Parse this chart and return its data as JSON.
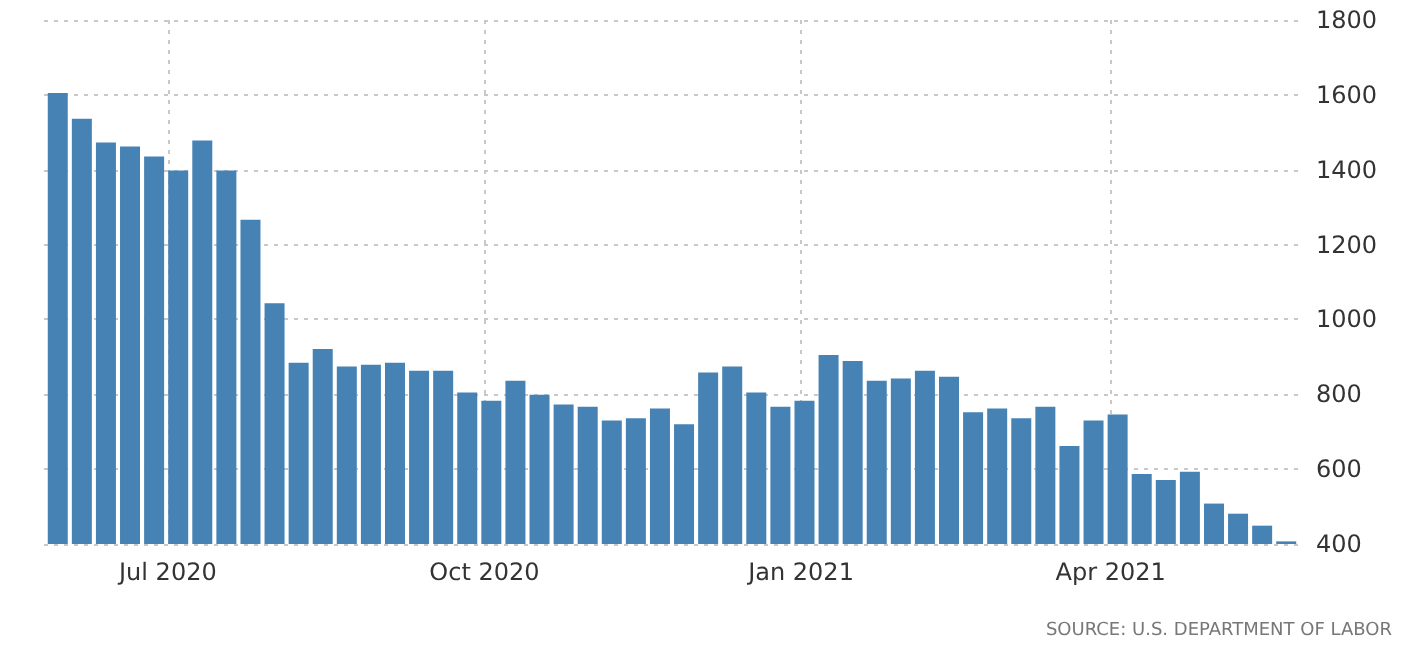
{
  "chart_data": {
    "type": "bar",
    "x": [
      "2020-05-30",
      "2020-06-06",
      "2020-06-13",
      "2020-06-20",
      "2020-06-27",
      "2020-07-04",
      "2020-07-11",
      "2020-07-18",
      "2020-07-25",
      "2020-08-01",
      "2020-08-08",
      "2020-08-15",
      "2020-08-22",
      "2020-08-29",
      "2020-09-05",
      "2020-09-12",
      "2020-09-19",
      "2020-09-26",
      "2020-10-03",
      "2020-10-10",
      "2020-10-17",
      "2020-10-24",
      "2020-10-31",
      "2020-11-07",
      "2020-11-14",
      "2020-11-21",
      "2020-11-28",
      "2020-12-05",
      "2020-12-12",
      "2020-12-19",
      "2020-12-26",
      "2021-01-02",
      "2021-01-09",
      "2021-01-16",
      "2021-01-23",
      "2021-01-30",
      "2021-02-06",
      "2021-02-13",
      "2021-02-20",
      "2021-02-27",
      "2021-03-06",
      "2021-03-13",
      "2021-03-20",
      "2021-03-27",
      "2021-04-03",
      "2021-04-10",
      "2021-04-17",
      "2021-04-24",
      "2021-05-01",
      "2021-05-08",
      "2021-05-15",
      "2021-05-22"
    ],
    "values": [
      1605,
      1536,
      1473,
      1462,
      1435,
      1398,
      1478,
      1398,
      1266,
      1043,
      884,
      921,
      874,
      879,
      884,
      863,
      863,
      805,
      783,
      836,
      799,
      773,
      767,
      730,
      736,
      762,
      720,
      858,
      874,
      805,
      767,
      783,
      905,
      889,
      836,
      842,
      863,
      847,
      752,
      762,
      736,
      767,
      662,
      730,
      746,
      587,
      571,
      593,
      508,
      481,
      449,
      407
    ],
    "color": "#4682b4",
    "xlim": [
      "2020-05-26",
      "2021-05-26"
    ],
    "xticks": [
      {
        "value": "2020-07-01",
        "label": "Jul 2020"
      },
      {
        "value": "2020-10-01",
        "label": "Oct 2020"
      },
      {
        "value": "2021-01-01",
        "label": "Jan 2021"
      },
      {
        "value": "2021-04-01",
        "label": "Apr 2021"
      }
    ],
    "ylim": [
      400,
      1800
    ],
    "yticks": [
      400,
      600,
      800,
      1000,
      1200,
      1400,
      1600,
      1800
    ],
    "grid": true,
    "annotations": [
      "SOURCE: U.S. DEPARTMENT OF LABOR"
    ]
  }
}
